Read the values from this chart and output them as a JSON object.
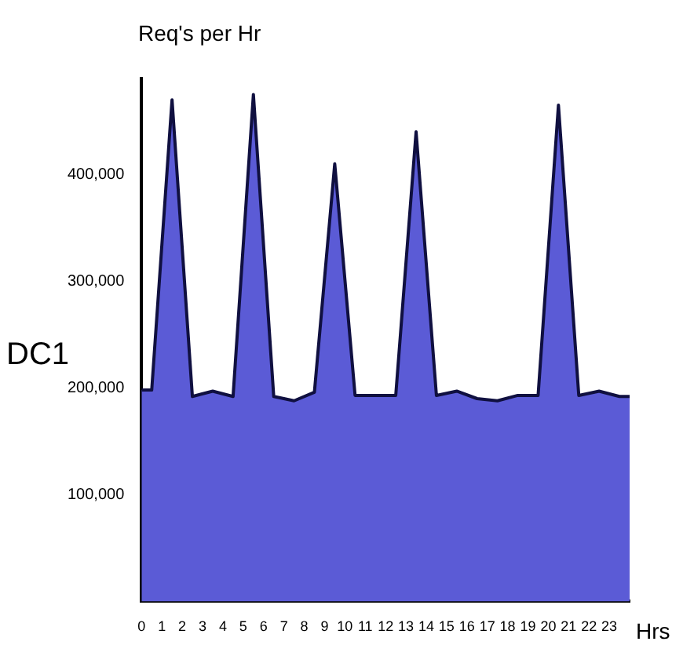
{
  "chart_data": {
    "type": "area",
    "title": "Req's per Hr",
    "ylabel": "DC1",
    "xlabel": "Hrs",
    "x": [
      0,
      0.5,
      1.5,
      2.5,
      3.5,
      4.5,
      5.5,
      6.5,
      7.5,
      8.5,
      9.5,
      10.5,
      11.5,
      12.5,
      13.5,
      14.5,
      15.5,
      16.5,
      17.5,
      18.5,
      19.5,
      20.5,
      21.5,
      22.5,
      23.5,
      24
    ],
    "series": [
      {
        "color": "#5b5bd6",
        "values": [
          198000,
          198000,
          470000,
          192000,
          197000,
          192000,
          475000,
          192000,
          188000,
          196000,
          410000,
          193000,
          193000,
          193000,
          440000,
          193000,
          197000,
          190000,
          188000,
          193000,
          193000,
          465000,
          193000,
          197000,
          192000,
          192000
        ]
      }
    ],
    "xlim": [
      0,
      24
    ],
    "xticks": [
      0,
      1,
      2,
      3,
      4,
      5,
      6,
      7,
      8,
      9,
      10,
      11,
      12,
      13,
      14,
      15,
      16,
      17,
      18,
      19,
      20,
      21,
      22,
      23
    ],
    "ylim": [
      0,
      490000
    ],
    "yticks": [
      {
        "value": 100000,
        "label": "100,000"
      },
      {
        "value": 200000,
        "label": "200,000"
      },
      {
        "value": 300000,
        "label": "300,000"
      },
      {
        "value": 400000,
        "label": "400,000"
      }
    ],
    "grid": false,
    "legend": false
  }
}
